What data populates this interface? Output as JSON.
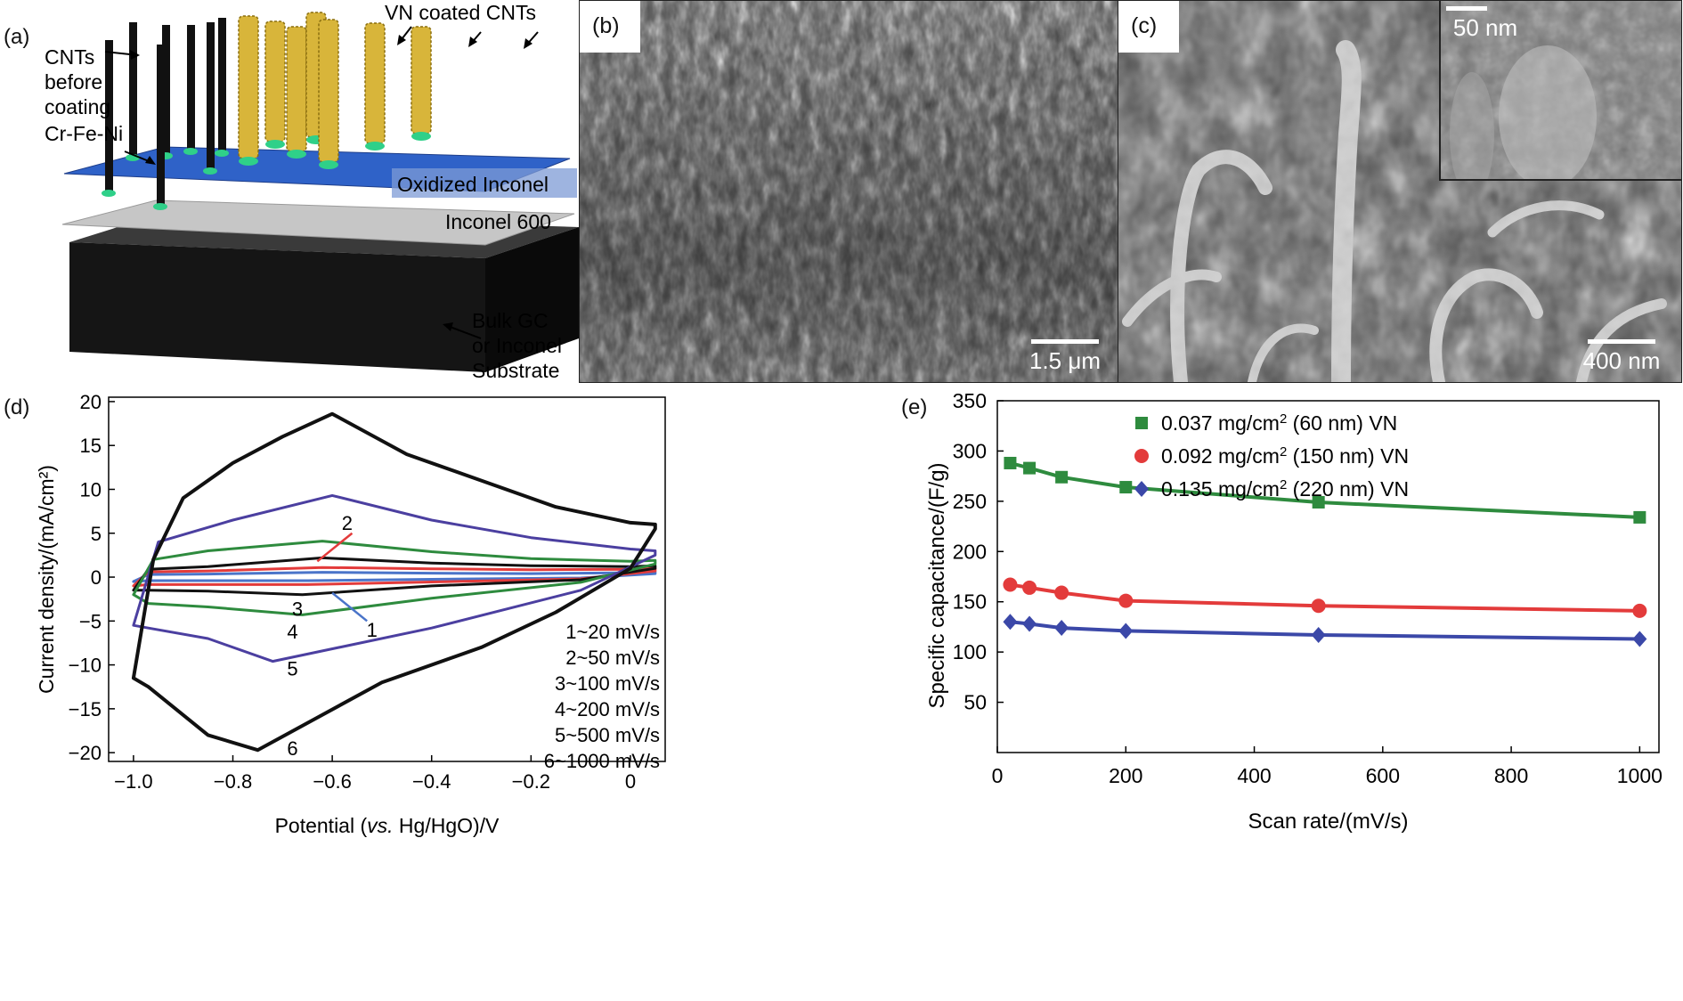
{
  "panel_a": {
    "label": "(a)",
    "cnt_label": "CNTs\nbefore\ncoating",
    "crfeni_label": "Cr-Fe-Ni",
    "vn_label": "VN coated CNTs",
    "oxidized_label": "Oxidized Inconel",
    "inconel_label": "Inconel 600",
    "substrate_label": "Bulk GC\nor Inconel\nSubstrate",
    "colors": {
      "blue_plane": "#2f62c8",
      "gray_plane": "#c6c6c6",
      "substrate": "#151515",
      "vn": "#d8b53a",
      "cnt": "#111111",
      "catalyst": "#2fd089"
    }
  },
  "panel_b": {
    "label": "(b)",
    "scale": "1.5 μm"
  },
  "panel_c": {
    "label": "(c)",
    "scale": "400 nm",
    "inset_scale": "50 nm"
  },
  "panel_d": {
    "label": "(d)",
    "chart_data": {
      "type": "line",
      "title": "",
      "xlabel_parts": [
        "Potential (",
        "vs.",
        " Hg/HgO)/V"
      ],
      "ylabel": "Current density/(mA/cm²)",
      "xlim": [
        -1.05,
        0.07
      ],
      "ylim": [
        -21,
        20.5
      ],
      "xticks": [
        -1.0,
        -0.8,
        -0.6,
        -0.4,
        -0.2,
        0
      ],
      "xtick_labels": [
        "−1.0",
        "−0.8",
        "−0.6",
        "−0.4",
        "−0.2",
        "0"
      ],
      "yticks": [
        20,
        15,
        10,
        5,
        0,
        -5,
        -10,
        -15,
        -20
      ],
      "ytick_labels": [
        "20",
        "15",
        "10",
        "5",
        "0",
        "−5",
        "−10",
        "−15",
        "−20"
      ],
      "legend": [
        "1~20 mV/s",
        "2~50 mV/s",
        "3~100 mV/s",
        "4~200 mV/s",
        "5~500 mV/s",
        "6~1000 mV/s"
      ],
      "curve_labels": [
        "1",
        "2",
        "3",
        "4",
        "5",
        "6"
      ],
      "series": [
        {
          "name": "1",
          "color": "#4a74c9",
          "top": [
            [
              -1.0,
              -0.5
            ],
            [
              -0.97,
              0.3
            ],
            [
              -0.85,
              0.35
            ],
            [
              -0.62,
              0.55
            ],
            [
              -0.4,
              0.45
            ],
            [
              -0.2,
              0.4
            ],
            [
              0.0,
              0.5
            ],
            [
              0.05,
              0.6
            ]
          ],
          "bottom": [
            [
              0.05,
              0.4
            ],
            [
              -0.1,
              -0.1
            ],
            [
              -0.4,
              -0.25
            ],
            [
              -0.65,
              -0.4
            ],
            [
              -0.85,
              -0.4
            ],
            [
              -0.97,
              -0.4
            ],
            [
              -1.0,
              -0.5
            ]
          ]
        },
        {
          "name": "2",
          "color": "#e33b3b",
          "top": [
            [
              -1.0,
              -1.0
            ],
            [
              -0.97,
              0.6
            ],
            [
              -0.85,
              0.7
            ],
            [
              -0.62,
              1.1
            ],
            [
              -0.4,
              0.95
            ],
            [
              -0.2,
              0.85
            ],
            [
              0.0,
              0.9
            ],
            [
              0.05,
              1.0
            ]
          ],
          "bottom": [
            [
              0.05,
              0.7
            ],
            [
              -0.1,
              -0.2
            ],
            [
              -0.4,
              -0.55
            ],
            [
              -0.65,
              -0.85
            ],
            [
              -0.85,
              -0.85
            ],
            [
              -0.97,
              -0.85
            ],
            [
              -1.0,
              -1.0
            ]
          ]
        },
        {
          "name": "3",
          "color": "#111111",
          "top": [
            [
              -1.0,
              -1.5
            ],
            [
              -0.97,
              0.9
            ],
            [
              -0.85,
              1.2
            ],
            [
              -0.62,
              2.2
            ],
            [
              -0.4,
              1.6
            ],
            [
              -0.2,
              1.3
            ],
            [
              0.0,
              1.2
            ],
            [
              0.05,
              1.3
            ]
          ],
          "bottom": [
            [
              0.05,
              1.0
            ],
            [
              -0.1,
              -0.3
            ],
            [
              -0.4,
              -1.0
            ],
            [
              -0.66,
              -2.0
            ],
            [
              -0.85,
              -1.6
            ],
            [
              -0.97,
              -1.5
            ],
            [
              -1.0,
              -1.5
            ]
          ]
        },
        {
          "name": "4",
          "color": "#2e8b3e",
          "top": [
            [
              -1.0,
              -2.0
            ],
            [
              -0.96,
              2.0
            ],
            [
              -0.85,
              3.0
            ],
            [
              -0.62,
              4.1
            ],
            [
              -0.4,
              2.9
            ],
            [
              -0.2,
              2.1
            ],
            [
              0.0,
              1.8
            ],
            [
              0.05,
              1.9
            ]
          ],
          "bottom": [
            [
              0.05,
              1.5
            ],
            [
              -0.1,
              -0.6
            ],
            [
              -0.4,
              -2.4
            ],
            [
              -0.66,
              -4.3
            ],
            [
              -0.85,
              -3.4
            ],
            [
              -0.97,
              -3.0
            ],
            [
              -1.0,
              -2.0
            ]
          ]
        },
        {
          "name": "5",
          "color": "#4b3fa0",
          "top": [
            [
              -1.0,
              -5.5
            ],
            [
              -0.95,
              4.0
            ],
            [
              -0.8,
              6.5
            ],
            [
              -0.6,
              9.3
            ],
            [
              -0.4,
              6.5
            ],
            [
              -0.2,
              4.5
            ],
            [
              0.0,
              3.2
            ],
            [
              0.05,
              3.0
            ]
          ],
          "bottom": [
            [
              0.05,
              2.5
            ],
            [
              -0.1,
              -1.5
            ],
            [
              -0.4,
              -5.8
            ],
            [
              -0.72,
              -9.6
            ],
            [
              -0.85,
              -7.0
            ],
            [
              -0.97,
              -5.8
            ],
            [
              -1.0,
              -5.5
            ]
          ]
        },
        {
          "name": "6",
          "color": "#111111",
          "top": [
            [
              -1.0,
              -11.5
            ],
            [
              -0.96,
              2.0
            ],
            [
              -0.9,
              9.0
            ],
            [
              -0.8,
              13.0
            ],
            [
              -0.7,
              16.0
            ],
            [
              -0.6,
              18.6
            ],
            [
              -0.45,
              14.0
            ],
            [
              -0.3,
              11.0
            ],
            [
              -0.15,
              8.0
            ],
            [
              0.0,
              6.2
            ],
            [
              0.05,
              6.0
            ]
          ],
          "bottom": [
            [
              0.05,
              5.5
            ],
            [
              0.0,
              1.0
            ],
            [
              -0.15,
              -4.0
            ],
            [
              -0.3,
              -8.0
            ],
            [
              -0.5,
              -12.0
            ],
            [
              -0.63,
              -16.0
            ],
            [
              -0.75,
              -19.7
            ],
            [
              -0.85,
              -18.0
            ],
            [
              -0.97,
              -12.5
            ],
            [
              -1.0,
              -11.5
            ]
          ]
        }
      ]
    }
  },
  "panel_e": {
    "label": "(e)",
    "chart_data": {
      "type": "line",
      "title": "",
      "xlabel": "Scan rate/(mV/s)",
      "ylabel": "Specific capacitance/(F/g)",
      "xlim": [
        0,
        1030
      ],
      "ylim": [
        0,
        350
      ],
      "xticks": [
        0,
        200,
        400,
        600,
        800,
        1000
      ],
      "yticks": [
        50,
        100,
        150,
        200,
        250,
        300,
        350
      ],
      "x": [
        20,
        50,
        100,
        200,
        500,
        1000
      ],
      "series": [
        {
          "name": "0.037 mg/cm² (60 nm) VN",
          "legend_parts": [
            "0.037 mg/cm",
            "2",
            " (60 nm) VN"
          ],
          "color": "#2e8b3e",
          "marker": "square",
          "values": [
            288,
            283,
            274,
            264,
            249,
            234
          ]
        },
        {
          "name": "0.092 mg/cm² (150 nm) VN",
          "legend_parts": [
            "0.092 mg/cm",
            "2",
            " (150 nm) VN"
          ],
          "color": "#e33b3b",
          "marker": "circle",
          "values": [
            167,
            164,
            159,
            151,
            146,
            141
          ]
        },
        {
          "name": "0.135 mg/cm² (220 nm) VN",
          "legend_parts": [
            "0.135 mg/cm",
            "2",
            " (220 nm) VN"
          ],
          "color": "#3b48a8",
          "marker": "diamond",
          "values": [
            130,
            128,
            124,
            121,
            117,
            113
          ]
        }
      ]
    }
  }
}
